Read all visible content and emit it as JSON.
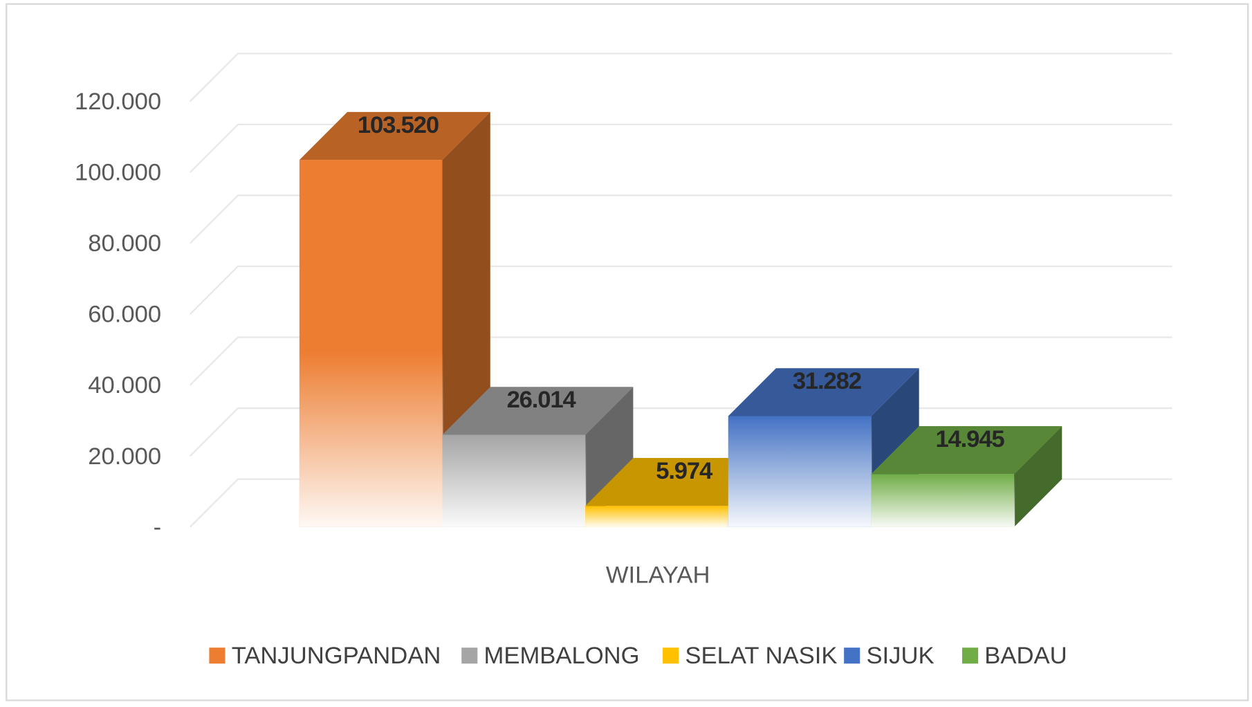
{
  "chart_data": {
    "type": "bar3d",
    "categories": [
      "WILAYAH"
    ],
    "series": [
      {
        "name": "TANJUNGPANDAN",
        "color": "#ed7d31",
        "values": [
          103520
        ],
        "value_labels": [
          "103.520"
        ]
      },
      {
        "name": "MEMBALONG",
        "color": "#a5a5a5",
        "values": [
          26014
        ],
        "value_labels": [
          "26.014"
        ]
      },
      {
        "name": "SELAT NASIK",
        "color": "#ffc000",
        "values": [
          5974
        ],
        "value_labels": [
          "5.974"
        ]
      },
      {
        "name": "SIJUK",
        "color": "#4472c4",
        "values": [
          31282
        ],
        "value_labels": [
          "31.282"
        ]
      },
      {
        "name": "BADAU",
        "color": "#70ad47",
        "values": [
          14945
        ],
        "value_labels": [
          "14.945"
        ]
      }
    ],
    "ylim": [
      0,
      120000
    ],
    "yticks": [
      {
        "value": 0,
        "label": "-"
      },
      {
        "value": 20000,
        "label": "20.000"
      },
      {
        "value": 40000,
        "label": "40.000"
      },
      {
        "value": 60000,
        "label": "60.000"
      },
      {
        "value": 80000,
        "label": "80.000"
      },
      {
        "value": 100000,
        "label": "100.000"
      },
      {
        "value": 120000,
        "label": "120.000"
      }
    ],
    "grid": true,
    "legend": "bottom"
  }
}
